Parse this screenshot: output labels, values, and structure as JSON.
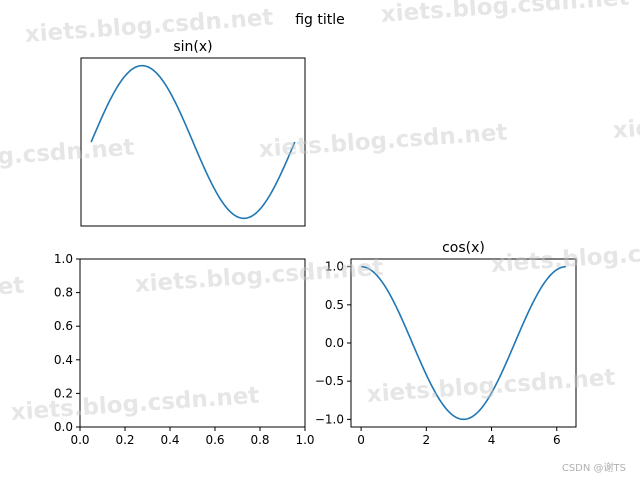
{
  "figure": {
    "suptitle": "fig title",
    "credit": "CSDN @谢TS",
    "watermark": "xiets.blog.csdn.net"
  },
  "chart_data": [
    {
      "type": "line",
      "title": "sin(x)",
      "function": "sin",
      "x_range": [
        0,
        6.2832
      ],
      "ylim": [
        -1.1,
        1.1
      ],
      "xticks": [],
      "yticks": [],
      "color": "#1f77b4",
      "grid": false
    },
    {
      "type": "line",
      "title": "",
      "series": [],
      "xlim": [
        0,
        1
      ],
      "ylim": [
        0,
        1
      ],
      "xticks": [
        "0.0",
        "0.2",
        "0.4",
        "0.6",
        "0.8",
        "1.0"
      ],
      "yticks": [
        "0.0",
        "0.2",
        "0.4",
        "0.6",
        "0.8",
        "1.0"
      ],
      "grid": false
    },
    {
      "type": "line",
      "title": "cos(x)",
      "function": "cos",
      "x_range": [
        0,
        6.2832
      ],
      "xlim": [
        -0.31,
        6.59
      ],
      "ylim": [
        -1.1,
        1.1
      ],
      "xticks": [
        "0",
        "2",
        "4",
        "6"
      ],
      "yticks": [
        "1.0",
        "0.5",
        "0.0",
        "−0.5",
        "−1.0"
      ],
      "color": "#1f77b4",
      "grid": false
    }
  ]
}
